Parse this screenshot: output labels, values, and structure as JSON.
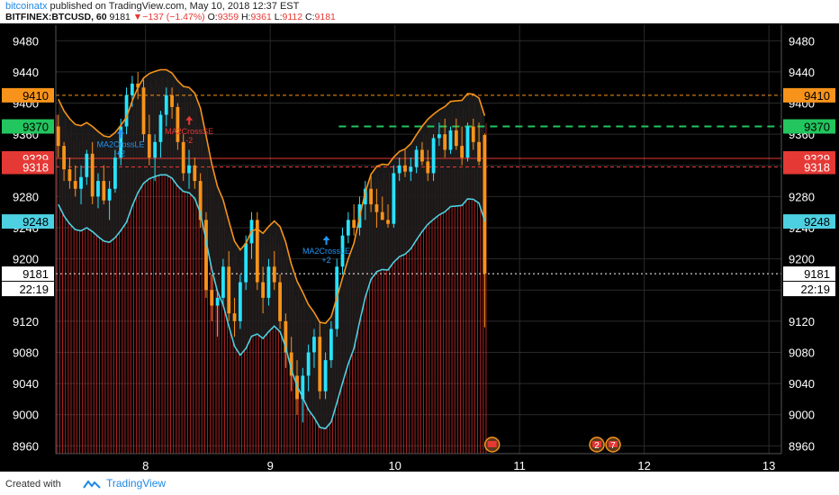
{
  "header": {
    "publisher": "bitcoinatx",
    "published_text": " published on TradingView.com, May 10, 2018 12:37 EST",
    "symbol": "BITFINEX:BTCUSD, 60",
    "last": "9181",
    "change_arrow": "▼",
    "change": "−137 (−1.47%)",
    "o_label": "O:",
    "o_value": "9359",
    "h_label": "H:",
    "h_value": "9361",
    "l_label": "L:",
    "l_value": "9112",
    "c_label": "C:",
    "c_value": "9181"
  },
  "footer": {
    "created_with": "Created with",
    "brand": "TradingView"
  },
  "chart_data": {
    "type": "candlestick",
    "y_ticks": [
      "9480",
      "9440",
      "9400",
      "9360",
      "9320",
      "9280",
      "9240",
      "9200",
      "9160",
      "9120",
      "9080",
      "9040",
      "9000",
      "8960"
    ],
    "x_ticks": [
      "8",
      "9",
      "10",
      "11",
      "12",
      "13"
    ],
    "ylim": [
      8950,
      9500
    ],
    "grid": true,
    "price_labels": [
      {
        "value": 9410,
        "text": "9410",
        "color": "#f7931a"
      },
      {
        "value": 9370,
        "text": "9370",
        "color": "#22c55e"
      },
      {
        "value": 9329,
        "text": "9329",
        "color": "#e53935"
      },
      {
        "value": 9318,
        "text": "9318",
        "color": "#e53935"
      },
      {
        "value": 9248,
        "text": "9248",
        "color": "#4dd0e1"
      },
      {
        "value": 9181,
        "text": "9181",
        "color": "#ffffff"
      }
    ],
    "countdown": "22:19",
    "annotations": [
      {
        "text": "MA2CrossLE",
        "sub": "+2",
        "x": 7.8,
        "y": 9355,
        "color": "#2196f3"
      },
      {
        "text": "MA2CrossSE",
        "sub": "-2",
        "x": 8.35,
        "y": 9372,
        "color": "#e53935"
      },
      {
        "text": "MA2CrossLE",
        "sub": "+2",
        "x": 9.45,
        "y": 9218,
        "color": "#2196f3"
      }
    ],
    "event_markers": [
      {
        "x": 10.78,
        "text": ""
      },
      {
        "x": 11.62,
        "text": "2"
      },
      {
        "x": 11.75,
        "text": "7"
      }
    ],
    "colors": {
      "up": "#26e3ff",
      "down": "#f7931a",
      "volume": "#c62828",
      "upper_band": "#f7931a",
      "lower_band": "#4dd0e1"
    },
    "candles": [
      [
        9370,
        9385,
        9330,
        9345
      ],
      [
        9345,
        9350,
        9300,
        9315
      ],
      [
        9315,
        9330,
        9290,
        9300
      ],
      [
        9300,
        9320,
        9280,
        9290
      ],
      [
        9290,
        9320,
        9270,
        9305
      ],
      [
        9305,
        9340,
        9295,
        9335
      ],
      [
        9335,
        9350,
        9270,
        9280
      ],
      [
        9280,
        9310,
        9265,
        9300
      ],
      [
        9300,
        9320,
        9270,
        9275
      ],
      [
        9275,
        9300,
        9250,
        9290
      ],
      [
        9290,
        9340,
        9285,
        9330
      ],
      [
        9330,
        9380,
        9320,
        9370
      ],
      [
        9370,
        9420,
        9360,
        9410
      ],
      [
        9410,
        9435,
        9395,
        9425
      ],
      [
        9425,
        9440,
        9405,
        9420
      ],
      [
        9420,
        9430,
        9350,
        9360
      ],
      [
        9360,
        9385,
        9320,
        9330
      ],
      [
        9330,
        9360,
        9300,
        9350
      ],
      [
        9350,
        9390,
        9330,
        9385
      ],
      [
        9385,
        9420,
        9370,
        9410
      ],
      [
        9410,
        9420,
        9380,
        9395
      ],
      [
        9395,
        9400,
        9340,
        9350
      ],
      [
        9350,
        9360,
        9300,
        9310
      ],
      [
        9310,
        9340,
        9290,
        9320
      ],
      [
        9320,
        9330,
        9290,
        9300
      ],
      [
        9300,
        9310,
        9240,
        9250
      ],
      [
        9250,
        9260,
        9150,
        9160
      ],
      [
        9160,
        9180,
        9120,
        9140
      ],
      [
        9140,
        9160,
        9100,
        9150
      ],
      [
        9150,
        9200,
        9140,
        9190
      ],
      [
        9190,
        9210,
        9120,
        9130
      ],
      [
        9130,
        9150,
        9100,
        9120
      ],
      [
        9120,
        9180,
        9110,
        9170
      ],
      [
        9170,
        9230,
        9160,
        9220
      ],
      [
        9220,
        9260,
        9200,
        9250
      ],
      [
        9250,
        9260,
        9160,
        9170
      ],
      [
        9170,
        9190,
        9130,
        9150
      ],
      [
        9150,
        9200,
        9140,
        9190
      ],
      [
        9190,
        9210,
        9160,
        9170
      ],
      [
        9170,
        9180,
        9110,
        9120
      ],
      [
        9120,
        9130,
        9060,
        9080
      ],
      [
        9080,
        9100,
        9030,
        9050
      ],
      [
        9050,
        9070,
        9000,
        9020
      ],
      [
        9020,
        9060,
        8990,
        9050
      ],
      [
        9050,
        9090,
        9030,
        9080
      ],
      [
        9080,
        9110,
        9060,
        9100
      ],
      [
        9100,
        9120,
        9020,
        9030
      ],
      [
        9030,
        9080,
        9020,
        9070
      ],
      [
        9070,
        9120,
        9060,
        9110
      ],
      [
        9110,
        9200,
        9100,
        9190
      ],
      [
        9190,
        9240,
        9180,
        9230
      ],
      [
        9230,
        9260,
        9220,
        9250
      ],
      [
        9250,
        9270,
        9230,
        9240
      ],
      [
        9240,
        9280,
        9230,
        9270
      ],
      [
        9270,
        9300,
        9250,
        9290
      ],
      [
        9290,
        9310,
        9260,
        9270
      ],
      [
        9270,
        9290,
        9240,
        9260
      ],
      [
        9260,
        9280,
        9250,
        9250
      ],
      [
        9250,
        9270,
        9240,
        9245
      ],
      [
        9245,
        9320,
        9240,
        9310
      ],
      [
        9310,
        9330,
        9300,
        9320
      ],
      [
        9320,
        9340,
        9305,
        9312
      ],
      [
        9312,
        9330,
        9300,
        9318
      ],
      [
        9318,
        9345,
        9310,
        9340
      ],
      [
        9340,
        9350,
        9320,
        9325
      ],
      [
        9325,
        9340,
        9300,
        9310
      ],
      [
        9310,
        9360,
        9300,
        9355
      ],
      [
        9355,
        9375,
        9345,
        9360
      ],
      [
        9360,
        9380,
        9330,
        9340
      ],
      [
        9340,
        9370,
        9335,
        9365
      ],
      [
        9365,
        9380,
        9340,
        9345
      ],
      [
        9345,
        9370,
        9320,
        9330
      ],
      [
        9330,
        9375,
        9325,
        9370
      ],
      [
        9370,
        9380,
        9340,
        9350
      ],
      [
        9350,
        9375,
        9320,
        9325
      ],
      [
        9359,
        9361,
        9112,
        9181
      ]
    ]
  }
}
